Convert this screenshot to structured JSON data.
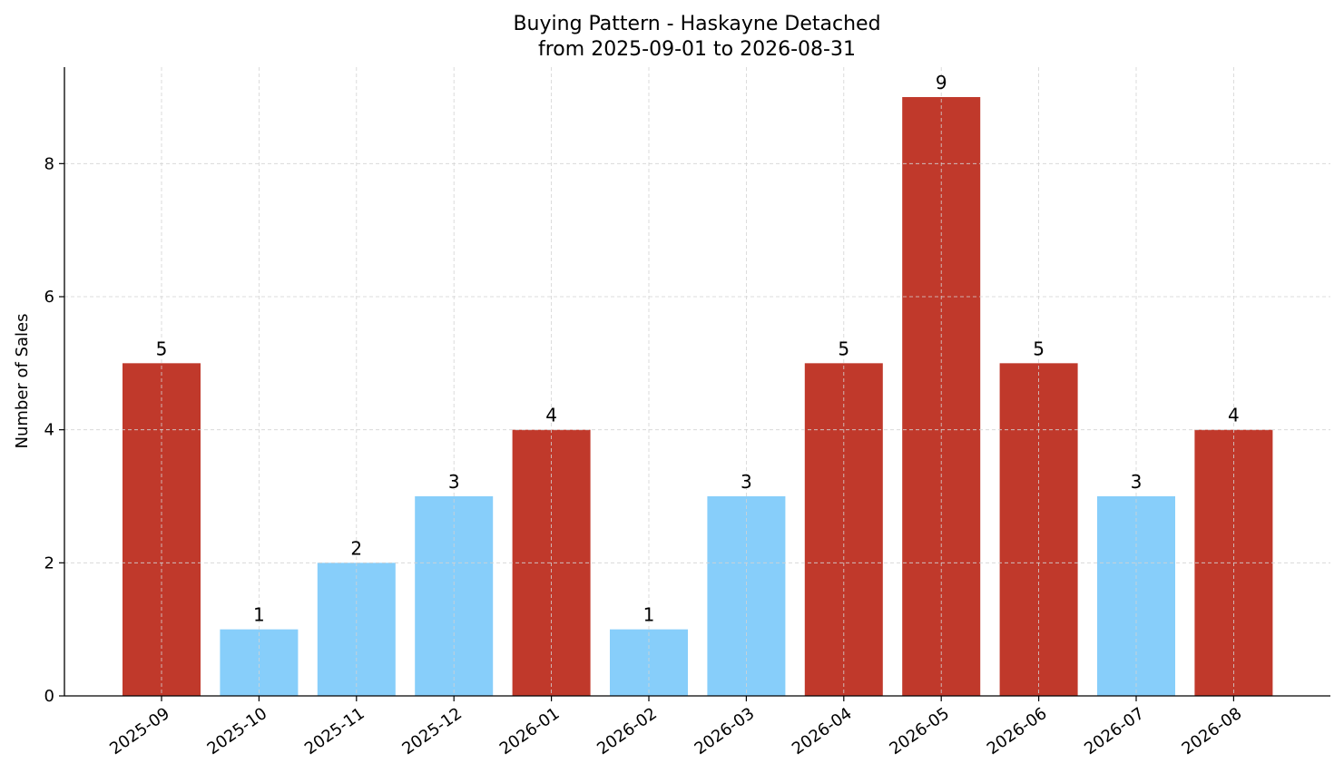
{
  "chart_data": {
    "type": "bar",
    "title": "Buying Pattern - Haskayne Detached",
    "subtitle": "from 2025-09-01 to 2026-08-31",
    "xlabel": "",
    "ylabel": "Number of Sales",
    "categories": [
      "2025-09",
      "2025-10",
      "2025-11",
      "2025-12",
      "2026-01",
      "2026-02",
      "2026-03",
      "2026-04",
      "2026-05",
      "2026-06",
      "2026-07",
      "2026-08"
    ],
    "values": [
      5,
      1,
      2,
      3,
      4,
      1,
      3,
      5,
      9,
      5,
      3,
      4
    ],
    "ylim": [
      0,
      9.45
    ],
    "yticks": [
      0,
      2,
      4,
      6,
      8
    ],
    "grid": true,
    "colors": {
      "high": "#c0392b",
      "low": "#87cefa"
    },
    "bar_colors": [
      "high",
      "low",
      "low",
      "low",
      "high",
      "low",
      "low",
      "high",
      "high",
      "high",
      "low",
      "high"
    ]
  }
}
